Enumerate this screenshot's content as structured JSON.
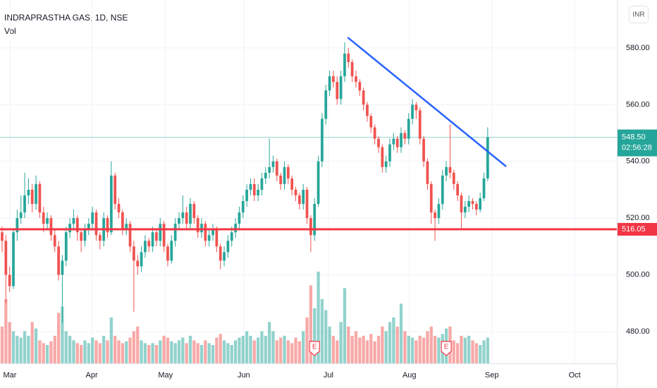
{
  "chart_data": {
    "type": "candlestick",
    "title": "INDRAPRASTHA GAS, 1D, NSE",
    "volume_label": "Vol",
    "currency": "INR",
    "up_color": "#26a69a",
    "down_color": "#ef5350",
    "ylim": [
      468.8,
      596.9
    ],
    "yticks": [
      {
        "value": 480,
        "label": "480.00"
      },
      {
        "value": 500,
        "label": "500.00"
      },
      {
        "value": 520,
        "label": "520.00"
      },
      {
        "value": 540,
        "label": "540.00"
      },
      {
        "value": 560,
        "label": "560.00"
      },
      {
        "value": 580,
        "label": "580.00"
      }
    ],
    "xlim": [
      -0.56,
      163.3
    ],
    "xticks": [
      {
        "value": 2.06,
        "label": "Mar"
      },
      {
        "value": 23.8,
        "label": "Apr"
      },
      {
        "value": 43.4,
        "label": "May"
      },
      {
        "value": 64.2,
        "label": "Jun"
      },
      {
        "value": 86.7,
        "label": "Jul"
      },
      {
        "value": 108.2,
        "label": "Aug"
      },
      {
        "value": 130.1,
        "label": "Sep"
      },
      {
        "value": 152.1,
        "label": "Oct"
      }
    ],
    "grid": true,
    "ohlc": [
      [
        515,
        517,
        508,
        512
      ],
      [
        512,
        514,
        490,
        500
      ],
      [
        500,
        503,
        494,
        496
      ],
      [
        496,
        516,
        495,
        515
      ],
      [
        515,
        523,
        512,
        520
      ],
      [
        520,
        528,
        518,
        522
      ],
      [
        522,
        536,
        520,
        528
      ],
      [
        528,
        534,
        525,
        530
      ],
      [
        530,
        532,
        522,
        525
      ],
      [
        525,
        535,
        523,
        532
      ],
      [
        532,
        533,
        520,
        522
      ],
      [
        522,
        524,
        515,
        518
      ],
      [
        518,
        522,
        516,
        520
      ],
      [
        520,
        521,
        512,
        514
      ],
      [
        514,
        516,
        508,
        510
      ],
      [
        510,
        512,
        498,
        500
      ],
      [
        500,
        507,
        483,
        505
      ],
      [
        505,
        517,
        503,
        515
      ],
      [
        515,
        520,
        513,
        518
      ],
      [
        518,
        523,
        516,
        520
      ],
      [
        520,
        521,
        512,
        515
      ],
      [
        515,
        516,
        508,
        512
      ],
      [
        512,
        518,
        510,
        516
      ],
      [
        516,
        520,
        514,
        518
      ],
      [
        518,
        524,
        516,
        522
      ],
      [
        522,
        523,
        512,
        514
      ],
      [
        514,
        515,
        509,
        512
      ],
      [
        512,
        522,
        510,
        520
      ],
      [
        520,
        521,
        513,
        515
      ],
      [
        515,
        540,
        514,
        535
      ],
      [
        535,
        536,
        523,
        525
      ],
      [
        525,
        527,
        520,
        522
      ],
      [
        522,
        523,
        514,
        516
      ],
      [
        516,
        520,
        514,
        518
      ],
      [
        518,
        519,
        508,
        510
      ],
      [
        510,
        512,
        487,
        505
      ],
      [
        505,
        507,
        500,
        503
      ],
      [
        503,
        510,
        501,
        508
      ],
      [
        508,
        514,
        506,
        512
      ],
      [
        512,
        513,
        508,
        510
      ],
      [
        510,
        517,
        508,
        515
      ],
      [
        515,
        516,
        510,
        512
      ],
      [
        512,
        520,
        510,
        518
      ],
      [
        518,
        519,
        508,
        510
      ],
      [
        510,
        511,
        503,
        505
      ],
      [
        505,
        514,
        504,
        512
      ],
      [
        512,
        520,
        510,
        518
      ],
      [
        518,
        522,
        516,
        520
      ],
      [
        520,
        528,
        518,
        522
      ],
      [
        522,
        524,
        516,
        518
      ],
      [
        518,
        527,
        516,
        525
      ],
      [
        525,
        526,
        518,
        520
      ],
      [
        520,
        521,
        513,
        515
      ],
      [
        515,
        520,
        513,
        518
      ],
      [
        518,
        519,
        510,
        512
      ],
      [
        512,
        516,
        510,
        514
      ],
      [
        514,
        518,
        512,
        516
      ],
      [
        516,
        517,
        508,
        510
      ],
      [
        510,
        511,
        502,
        505
      ],
      [
        505,
        510,
        503,
        508
      ],
      [
        508,
        514,
        506,
        512
      ],
      [
        512,
        517,
        510,
        515
      ],
      [
        515,
        520,
        513,
        518
      ],
      [
        518,
        524,
        516,
        522
      ],
      [
        522,
        528,
        520,
        526
      ],
      [
        526,
        532,
        524,
        530
      ],
      [
        530,
        534,
        528,
        532
      ],
      [
        532,
        534,
        526,
        528
      ],
      [
        528,
        532,
        526,
        530
      ],
      [
        530,
        536,
        528,
        534
      ],
      [
        534,
        538,
        532,
        536
      ],
      [
        536,
        548,
        534,
        538
      ],
      [
        538,
        542,
        536,
        540
      ],
      [
        540,
        541,
        533,
        535
      ],
      [
        535,
        536,
        530,
        532
      ],
      [
        532,
        540,
        530,
        538
      ],
      [
        538,
        539,
        532,
        534
      ],
      [
        534,
        535,
        528,
        530
      ],
      [
        530,
        531,
        526,
        528
      ],
      [
        528,
        529,
        523,
        525
      ],
      [
        525,
        532,
        523,
        530
      ],
      [
        530,
        531,
        518,
        520
      ],
      [
        520,
        521,
        508,
        514
      ],
      [
        514,
        527,
        512,
        525
      ],
      [
        525,
        542,
        524,
        540
      ],
      [
        540,
        557,
        538,
        555
      ],
      [
        555,
        567,
        553,
        565
      ],
      [
        565,
        572,
        563,
        570
      ],
      [
        570,
        572,
        566,
        568
      ],
      [
        568,
        570,
        560,
        562
      ],
      [
        562,
        572,
        560,
        570
      ],
      [
        570,
        582,
        568,
        578
      ],
      [
        578,
        580,
        573,
        575
      ],
      [
        575,
        576,
        568,
        570
      ],
      [
        570,
        572,
        566,
        568
      ],
      [
        568,
        569,
        563,
        565
      ],
      [
        565,
        566,
        558,
        560
      ],
      [
        560,
        561,
        554,
        556
      ],
      [
        556,
        557,
        550,
        552
      ],
      [
        552,
        553,
        546,
        548
      ],
      [
        548,
        549,
        543,
        545
      ],
      [
        545,
        546,
        536,
        538
      ],
      [
        538,
        542,
        536,
        540
      ],
      [
        540,
        548,
        538,
        546
      ],
      [
        546,
        550,
        544,
        548
      ],
      [
        548,
        549,
        543,
        545
      ],
      [
        545,
        552,
        543,
        550
      ],
      [
        550,
        551,
        546,
        548
      ],
      [
        548,
        557,
        546,
        555
      ],
      [
        555,
        562,
        553,
        560
      ],
      [
        560,
        561,
        555,
        558
      ],
      [
        558,
        559,
        546,
        548
      ],
      [
        548,
        549,
        538,
        540
      ],
      [
        540,
        541,
        530,
        532
      ],
      [
        532,
        533,
        518,
        522
      ],
      [
        522,
        523,
        512,
        520
      ],
      [
        520,
        527,
        518,
        525
      ],
      [
        525,
        537,
        523,
        535
      ],
      [
        535,
        540,
        533,
        538
      ],
      [
        538,
        553,
        534,
        536
      ],
      [
        536,
        537,
        530,
        532
      ],
      [
        532,
        533,
        526,
        528
      ],
      [
        528,
        529,
        516,
        522
      ],
      [
        522,
        526,
        520,
        524
      ],
      [
        524,
        528,
        522,
        526
      ],
      [
        526,
        527,
        523,
        525
      ],
      [
        525,
        526,
        521,
        523
      ],
      [
        523,
        529,
        522,
        527
      ],
      [
        527,
        536,
        526,
        534
      ],
      [
        534,
        552,
        533,
        548.5
      ]
    ],
    "volume": [
      40,
      70,
      45,
      35,
      30,
      28,
      35,
      30,
      45,
      38,
      25,
      22,
      20,
      24,
      30,
      55,
      62,
      35,
      30,
      25,
      22,
      20,
      25,
      22,
      28,
      25,
      22,
      30,
      25,
      50,
      30,
      25,
      22,
      24,
      28,
      35,
      40,
      25,
      22,
      20,
      22,
      20,
      25,
      30,
      28,
      24,
      22,
      25,
      28,
      22,
      30,
      25,
      22,
      20,
      25,
      22,
      20,
      28,
      32,
      25,
      22,
      20,
      25,
      28,
      30,
      35,
      30,
      25,
      28,
      35,
      30,
      45,
      35,
      25,
      28,
      30,
      25,
      22,
      28,
      24,
      35,
      50,
      85,
      60,
      100,
      70,
      58,
      40,
      30,
      25,
      45,
      82,
      40,
      30,
      35,
      28,
      30,
      25,
      32,
      24,
      30,
      40,
      35,
      45,
      50,
      40,
      65,
      35,
      30,
      28,
      25,
      30,
      28,
      35,
      40,
      30,
      28,
      32,
      38,
      40,
      25,
      22,
      30,
      28,
      30,
      25,
      22,
      20,
      25,
      28
    ],
    "last_price": 548.5,
    "last_price_label": "548.50",
    "countdown": "02:56:28",
    "support_line": {
      "value": 516.05,
      "color": "#f23645"
    },
    "trendline": {
      "x": [
        91.8,
        133.9
      ],
      "y": [
        583.7,
        538.2
      ],
      "color": "#2962ff"
    },
    "events": [
      {
        "index": 83,
        "label": "E"
      },
      {
        "index": 118,
        "label": "E"
      }
    ]
  }
}
